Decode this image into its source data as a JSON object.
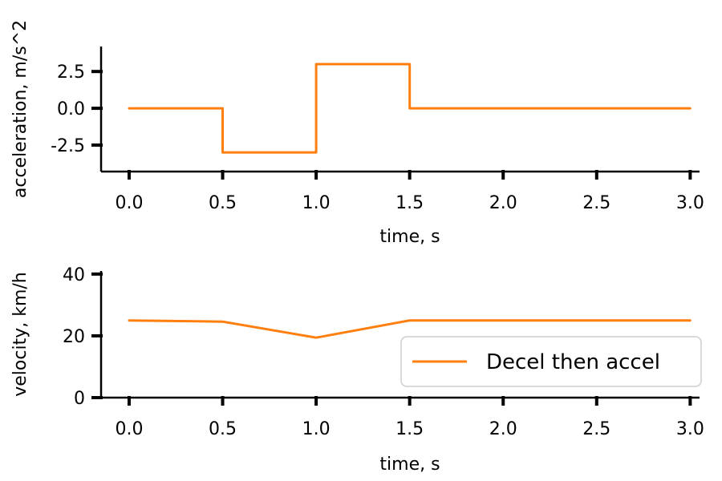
{
  "chart_data": [
    {
      "type": "line",
      "xlabel": "time, s",
      "ylabel": "acceleration, m/s^2",
      "xlim": [
        -0.15,
        3.05
      ],
      "ylim": [
        -4.3,
        4.2
      ],
      "xticks": [
        0.0,
        0.5,
        1.0,
        1.5,
        2.0,
        2.5,
        3.0
      ],
      "xtick_labels": [
        "0.0",
        "0.5",
        "1.0",
        "1.5",
        "2.0",
        "2.5",
        "3.0"
      ],
      "yticks": [
        2.5,
        0.0,
        -2.5
      ],
      "ytick_labels": [
        "2.5",
        "0.0",
        "-2.5"
      ],
      "series": [
        {
          "color": "#ff7f0e",
          "x": [
            0.0,
            0.5,
            0.5,
            1.0,
            1.0,
            1.5,
            1.5,
            3.0
          ],
          "y": [
            0.0,
            0.0,
            -3.0,
            -3.0,
            3.0,
            3.0,
            0.0,
            0.0
          ]
        }
      ]
    },
    {
      "type": "line",
      "xlabel": "time, s",
      "ylabel": "velocity, km/h",
      "xlim": [
        -0.15,
        3.05
      ],
      "ylim": [
        0,
        41
      ],
      "xticks": [
        0.0,
        0.5,
        1.0,
        1.5,
        2.0,
        2.5,
        3.0
      ],
      "xtick_labels": [
        "0.0",
        "0.5",
        "1.0",
        "1.5",
        "2.0",
        "2.5",
        "3.0"
      ],
      "yticks": [
        40,
        20,
        0
      ],
      "ytick_labels": [
        "40",
        "20",
        "0"
      ],
      "legend": {
        "position": "lower-right",
        "entries": [
          "Decel then accel"
        ]
      },
      "series": [
        {
          "name": "Decel then accel",
          "color": "#ff7f0e",
          "x": [
            0.0,
            0.5,
            1.0,
            1.5,
            3.0
          ],
          "y": [
            25.0,
            24.6,
            19.4,
            25.0,
            25.0
          ]
        }
      ]
    }
  ]
}
